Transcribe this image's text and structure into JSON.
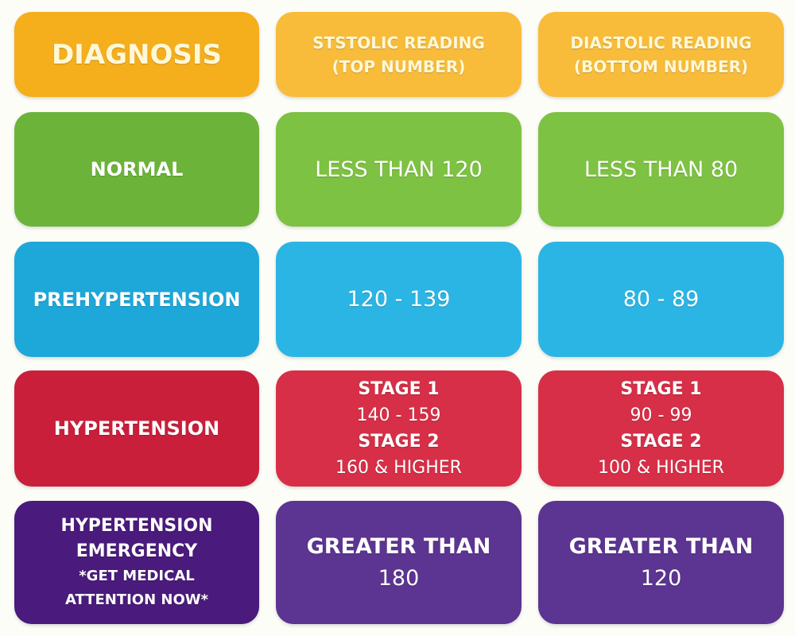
{
  "colors": {
    "header_dark": "#f5ae1c",
    "header": "#f8bc3a",
    "normal_dark": "#6cb33a",
    "normal": "#7dc242",
    "prehypertension_dark": "#1ea7d9",
    "prehypertension": "#2bb5e4",
    "hypertension_dark": "#c91f3b",
    "hypertension": "#d62f47",
    "emergency_dark": "#4a1a7c",
    "emergency": "#5c3491"
  },
  "header": {
    "diagnosis": "DIAGNOSIS",
    "systolic": [
      "STSTOLIC READING",
      "(TOP NUMBER)"
    ],
    "diastolic": [
      "DIASTOLIC READING",
      "(BOTTOM NUMBER)"
    ]
  },
  "rows": [
    {
      "diagnosis": "NORMAL",
      "systolic": "LESS THAN 120",
      "diastolic": "LESS THAN 80"
    },
    {
      "diagnosis": "PREHYPERTENSION",
      "systolic": "120 - 139",
      "diastolic": "80 - 89"
    },
    {
      "diagnosis": "HYPERTENSION",
      "systolic": {
        "stage1_label": "STAGE 1",
        "stage1": "140 - 159",
        "stage2_label": "STAGE 2",
        "stage2": "160 & HIGHER"
      },
      "diastolic": {
        "stage1_label": "STAGE 1",
        "stage1": "90 - 99",
        "stage2_label": "STAGE 2",
        "stage2": "100 & HIGHER"
      }
    },
    {
      "diagnosis": [
        "HYPERTENSION",
        "EMERGENCY",
        "*GET MEDICAL",
        "ATTENTION NOW*"
      ],
      "systolic": [
        "GREATER THAN",
        "180"
      ],
      "diastolic": [
        "GREATER THAN",
        "120"
      ]
    }
  ]
}
